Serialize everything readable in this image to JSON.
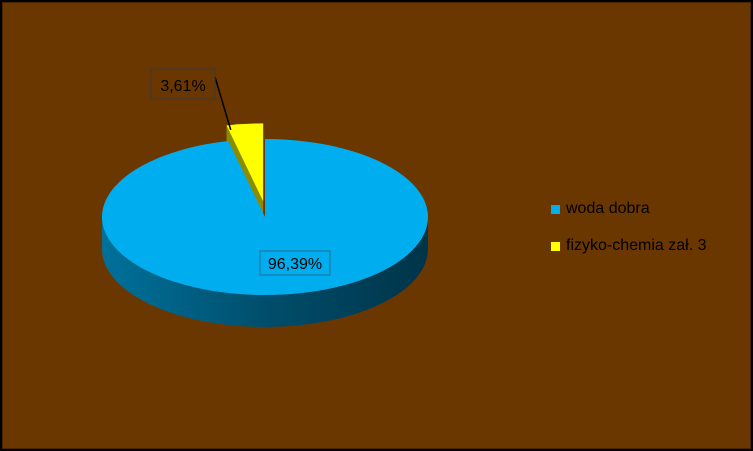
{
  "chart_data": {
    "type": "pie",
    "title": "",
    "categories": [
      "woda dobra",
      "fizyko-chemia zał. 3"
    ],
    "values": [
      96.39,
      3.61
    ],
    "data_labels": [
      "96,39%",
      "3,61%"
    ],
    "colors": [
      "#00aeef",
      "#ffff00"
    ],
    "legend": "right",
    "three_d": true
  },
  "colors": {
    "background": "#6b3700",
    "frame": "#000000"
  }
}
